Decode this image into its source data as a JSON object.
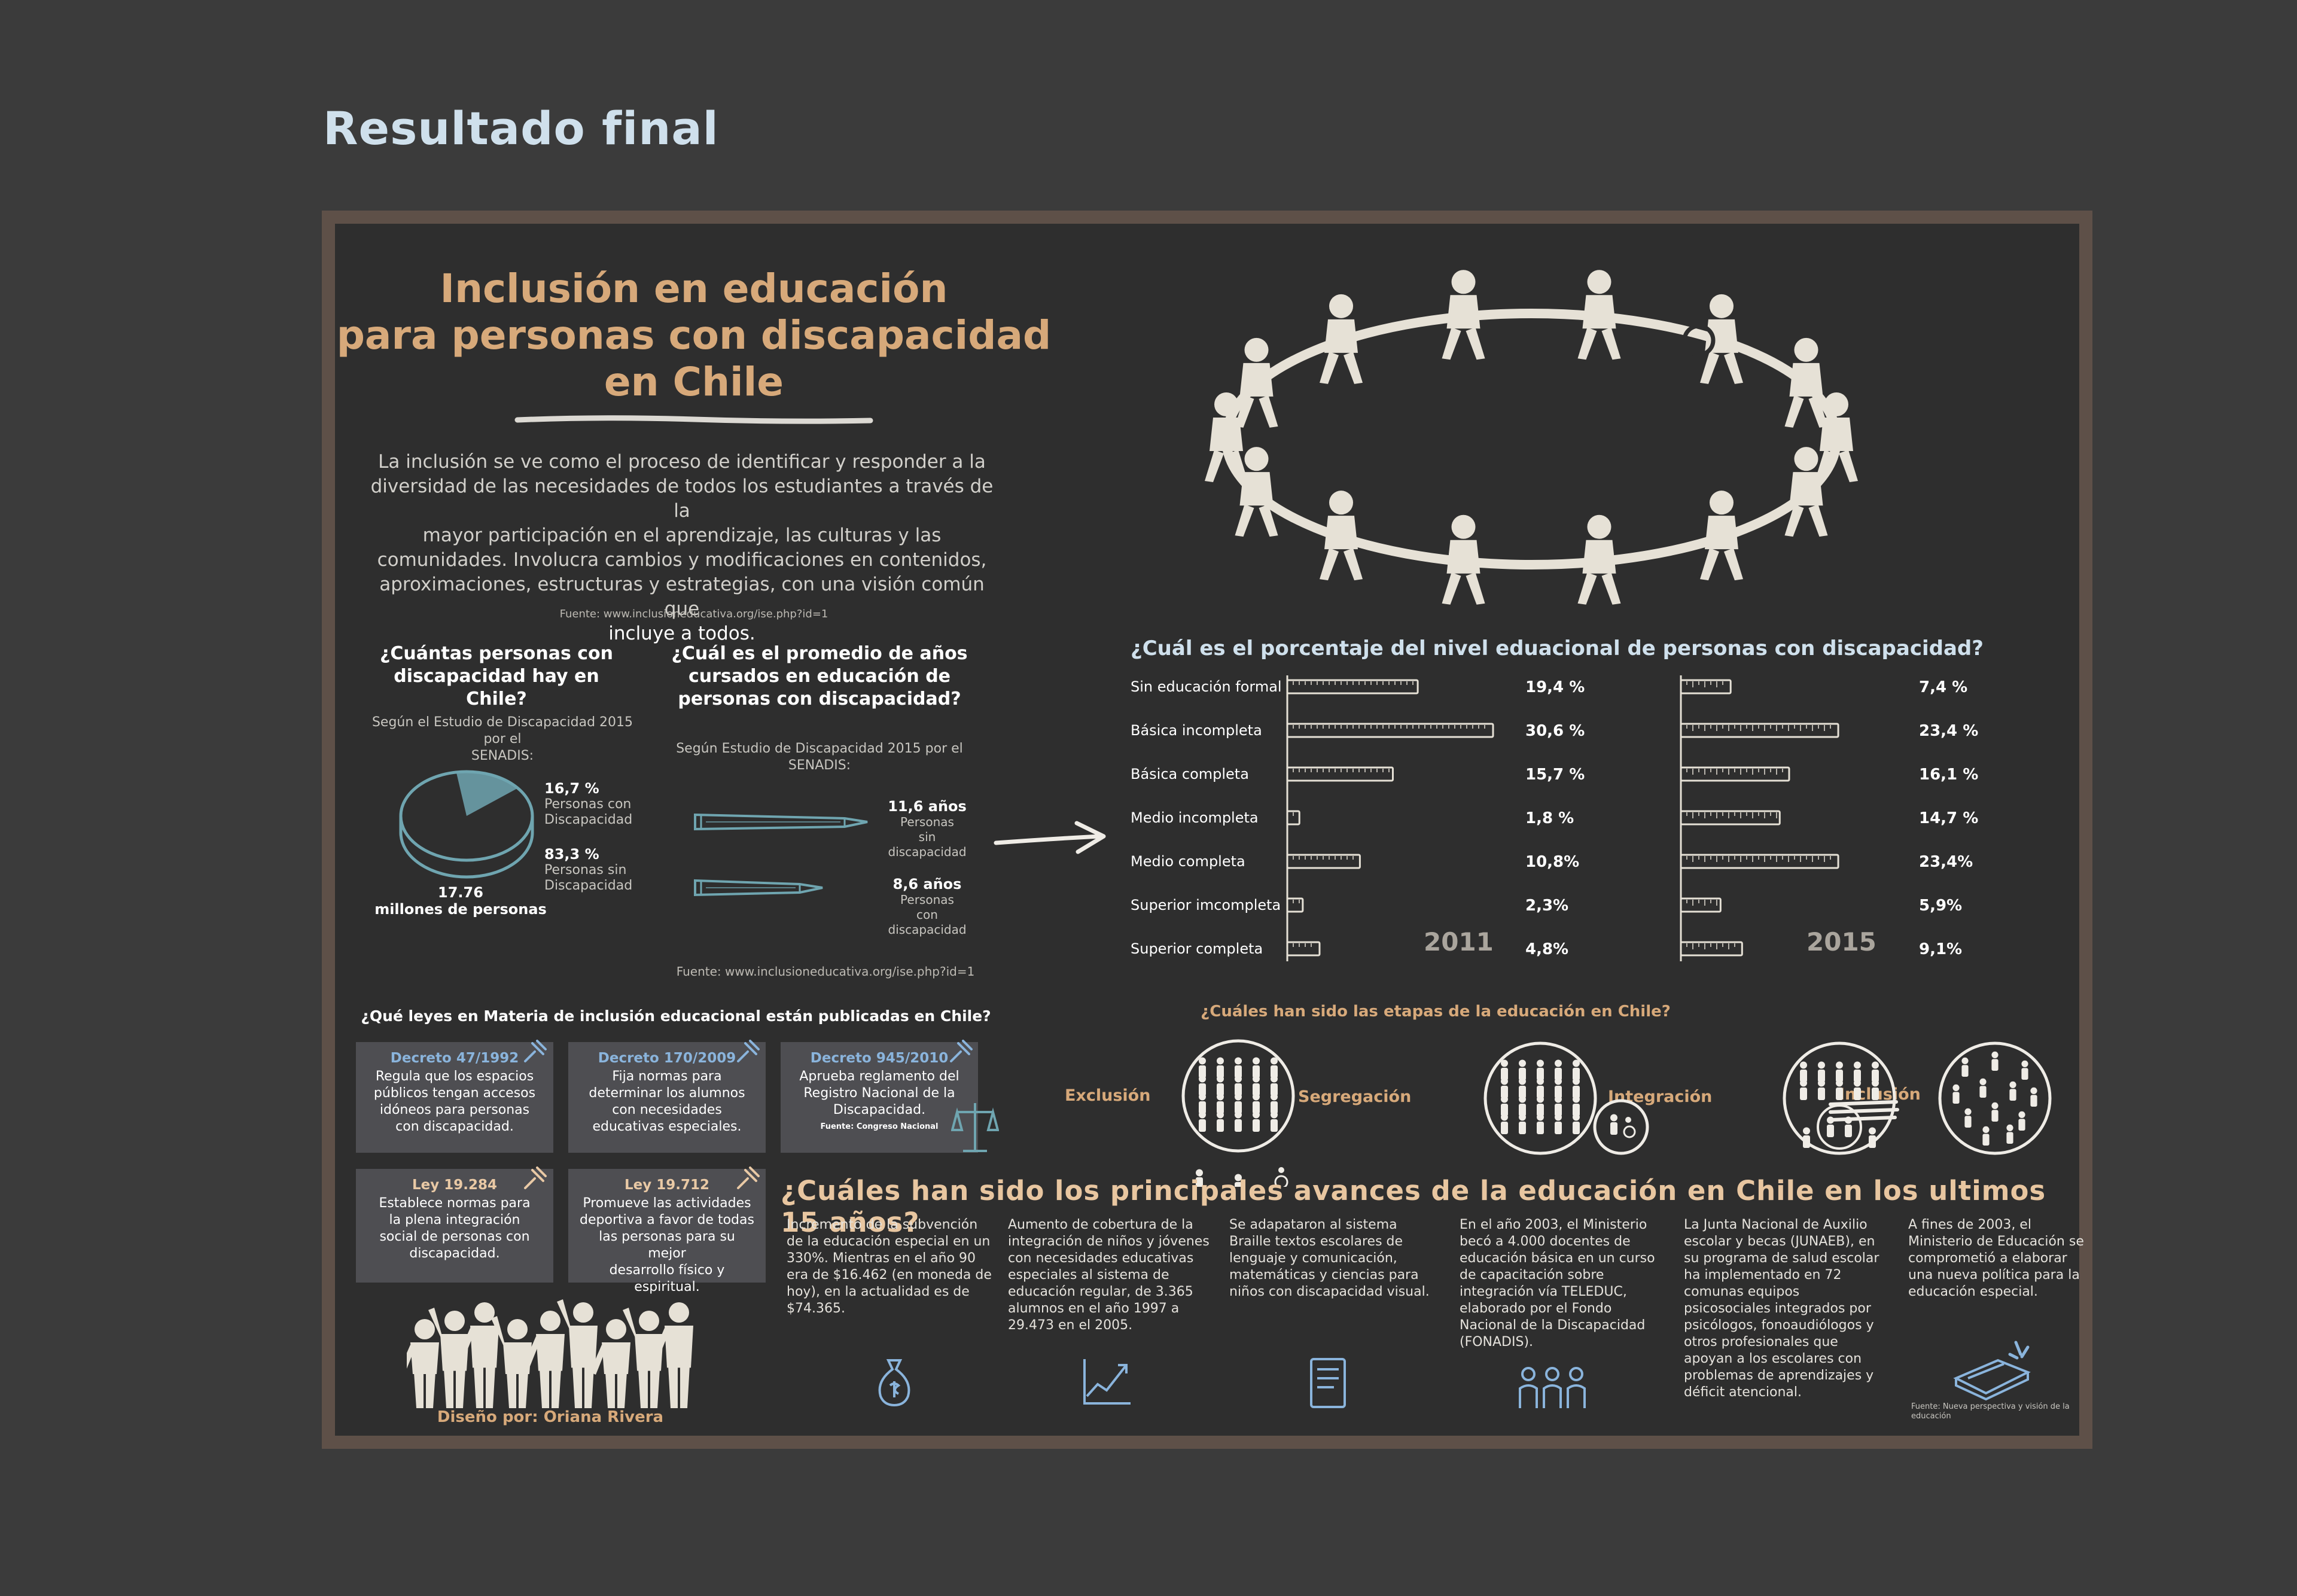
{
  "page_title": "Resultado final",
  "infographic": {
    "title_lines": [
      "Inclusión en educación",
      "para personas con discapacidad",
      "en Chile"
    ],
    "intro_lines": [
      "La inclusión se ve como el proceso de identificar y responder a la",
      "diversidad de las necesidades de todos los estudiantes a través de la",
      "mayor participación en el aprendizaje, las culturas y las",
      "comunidades. Involucra cambios y modificaciones en contenidos,",
      "aproximaciones, estructuras y estrategias, con una visión común que",
      "incluye a todos."
    ],
    "intro_source": "Fuente: www.inclusioneducativa.org/ise.php?id=1",
    "people_count": {
      "question_lines": [
        "¿Cuántas personas con",
        "discapacidad hay en Chile?"
      ],
      "note_lines": [
        "Según el Estudio de Discapacidad 2015 por el",
        "SENADIS:"
      ],
      "pct_disability": "16,7 %",
      "pct_disability_label_lines": [
        "Personas con",
        "Discapacidad"
      ],
      "pct_no_disability": "83,3 %",
      "pct_no_disability_label_lines": [
        "Personas sin",
        "Discapacidad"
      ],
      "total": "17.76",
      "total_label": "millones de personas"
    },
    "years_avg": {
      "question_lines": [
        "¿Cuál es el promedio de años",
        "cursados en  educación de",
        "personas con discapacidad?"
      ],
      "note_lines": [
        "Según Estudio de Discapacidad 2015 por el",
        "SENADIS:"
      ],
      "without_value": "11,6 años",
      "without_label_lines": [
        "Personas",
        "sin",
        "discapacidad"
      ],
      "with_value": "8,6 años",
      "with_label_lines": [
        "Personas",
        "con",
        "discapacidad"
      ],
      "source": "Fuente: www.inclusioneducativa.org/ise.php?id=1"
    },
    "laws": {
      "question": "¿Qué leyes en Materia de inclusión educacional están publicadas en Chile?",
      "items": [
        {
          "title": "Decreto 47/1992",
          "lines": [
            "Regula que los espacios",
            "públicos tengan accesos",
            "idóneos para personas",
            "con discapacidad."
          ]
        },
        {
          "title": "Decreto 170/2009",
          "lines": [
            "Fija normas para",
            "determinar los alumnos",
            "con necesidades",
            "educativas especiales."
          ]
        },
        {
          "title": "Decreto 945/2010",
          "lines": [
            "Aprueba reglamento del",
            "Registro Nacional de la",
            "Discapacidad."
          ],
          "source": "Fuente: Congreso Nacional"
        },
        {
          "title": "Ley 19.284",
          "lines": [
            "Establece normas para",
            "la plena integración",
            "social de personas con",
            "discapacidad."
          ]
        },
        {
          "title": "Ley 19.712",
          "lines": [
            "Promueve las actividades",
            "deportiva  a favor de todas",
            "las personas para su mejor",
            "desarrollo físico y",
            "espiritual."
          ]
        }
      ]
    },
    "credit": "Diseño por: Oriana Rivera",
    "stages": {
      "question": "¿Cuáles han sido las etapas de la educación en Chile?",
      "labels": [
        "Exclusión",
        "Segregación",
        "Integración",
        "Inclusión"
      ]
    },
    "advances": {
      "question": "¿Cuáles han sido los principales avances de la educación en Chile en los ultimos 15 años?",
      "columns": [
        {
          "icon": "money-bag-icon",
          "lines": [
            "Incremento de la subvención",
            "de la educación especial en un",
            "330%. Mientras en el año 90",
            "era de $16.462 (en moneda de",
            "hoy), en la actualidad es de",
            "$74.365."
          ]
        },
        {
          "icon": "growth-chart-icon",
          "lines": [
            "Aumento de cobertura de la",
            "integración de niños y jóvenes",
            "con necesidades educativas",
            "especiales al sistema de",
            "educación regular, de 3.365",
            "alumnos en el año 1997 a",
            "29.473 en el 2005."
          ]
        },
        {
          "icon": "book-icon",
          "lines": [
            "Se adapataron al sistema",
            "Braille textos escolares de",
            "lenguaje y comunicación,",
            "matemáticas y ciencias para",
            "niños con discapacidad visual."
          ]
        },
        {
          "icon": "people-icon",
          "lines": [
            "En el año 2003, el Ministerio",
            "becó a 4.000 docentes de",
            "educación básica en un curso",
            "de capacitación sobre",
            "integración vía TELEDUC,",
            "elaborado por el Fondo",
            "Nacional de la Discapacidad",
            "(FONADIS)."
          ]
        },
        {
          "icon": "none",
          "lines": [
            "La Junta Nacional de Auxilio",
            "escolar y becas (JUNAEB), en",
            "su programa de salud escolar",
            "ha implementado en 72",
            "comunas equipos",
            "psicosociales integrados por",
            "psicólogos, fonoaudiólogos y",
            "otros profesionales que",
            "apoyan a los escolares con",
            "problemas de aprendizajes y",
            "déficit atencional."
          ]
        },
        {
          "icon": "policy-book-icon",
          "lines": [
            "A fines de 2003, el",
            "Ministerio de Educación se",
            "comprometió a elaborar",
            "una nueva política para la",
            "educación especial."
          ]
        }
      ],
      "source_lines": [
        "Fuente: Nueva perspectiva y visión de la",
        "educación"
      ]
    }
  },
  "chart_data": [
    {
      "type": "pie",
      "categories": [
        "Personas con Discapacidad",
        "Personas sin Discapacidad"
      ],
      "values": [
        16.7,
        83.3
      ]
    },
    {
      "type": "bar",
      "title": "¿Cuál es el porcentaje del nivel eduacional de personas con discapacidad?",
      "categories": [
        "Sin educación formal",
        "Básica incompleta",
        "Básica completa",
        "Medio incompleta",
        "Medio completa",
        "Superior imcompleta",
        "Superior completa"
      ],
      "series": [
        {
          "name": "2011",
          "values": [
            19.4,
            30.6,
            15.7,
            1.8,
            10.8,
            2.3,
            4.8
          ],
          "labels": [
            "19,4 %",
            "30,6 %",
            "15,7 %",
            "1,8 %",
            "10,8%",
            "2,3%",
            "4,8%"
          ]
        },
        {
          "name": "2015",
          "values": [
            7.4,
            23.4,
            16.1,
            14.7,
            23.4,
            5.9,
            9.1
          ],
          "labels": [
            "7,4 %",
            "23,4 %",
            "16,1 %",
            "14,7 %",
            "23,4%",
            "5,9%",
            "9,1%"
          ]
        }
      ]
    }
  ]
}
